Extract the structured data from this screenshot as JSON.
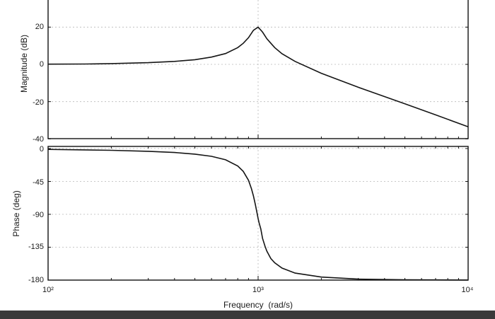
{
  "chart_data": [
    {
      "type": "line",
      "ylabel": "Magnitude (dB)",
      "xlabel": "",
      "xscale": "log",
      "xlim": [
        100,
        10000
      ],
      "ylim": [
        -40,
        30
      ],
      "yticks": [
        20,
        0,
        -20,
        -40
      ],
      "ytick_labels": [
        "20",
        "0",
        "-20",
        "-40"
      ],
      "grid": true,
      "series": [
        {
          "x": [
            100,
            150,
            200,
            300,
            400,
            500,
            600,
            700,
            800,
            850,
            900,
            950,
            1000,
            1050,
            1100,
            1200,
            1300,
            1500,
            2000,
            3000,
            5000,
            7000,
            10000
          ],
          "values": [
            0.1,
            0.2,
            0.4,
            0.9,
            1.6,
            2.5,
            3.9,
            5.8,
            9.0,
            11.3,
            14.3,
            18.3,
            20.0,
            17.3,
            13.8,
            9.0,
            5.7,
            1.6,
            -4.8,
            -12.3,
            -21.2,
            -27.1,
            -33.5
          ]
        }
      ]
    },
    {
      "type": "line",
      "ylabel": "Phase (deg)",
      "xlabel": "Frequency  (rad/s)",
      "xscale": "log",
      "xlim": [
        100,
        10000
      ],
      "ylim": [
        -180,
        0
      ],
      "yticks": [
        0,
        -45,
        -90,
        -135,
        -180
      ],
      "ytick_labels": [
        "0",
        "-45",
        "-90",
        "-135",
        "-180"
      ],
      "xtick_labels": [
        "10²",
        "10³",
        "10⁴"
      ],
      "grid": true,
      "series": [
        {
          "x": [
            100,
            200,
            300,
            400,
            500,
            600,
            700,
            800,
            850,
            900,
            930,
            950,
            970,
            990,
            1000,
            1010,
            1030,
            1050,
            1080,
            1100,
            1150,
            1200,
            1300,
            1500,
            2000,
            3000,
            5000,
            10000
          ],
          "values": [
            -1.2,
            -2.4,
            -3.8,
            -5.4,
            -7.6,
            -10.6,
            -15.4,
            -23.9,
            -31.3,
            -43.5,
            -55.1,
            -64.9,
            -76.6,
            -89.2,
            -95.7,
            -101.3,
            -109.9,
            -123.0,
            -134.0,
            -140.2,
            -150.5,
            -156.3,
            -163.5,
            -170.4,
            -175.8,
            -178.6,
            -179.5,
            -179.9
          ]
        }
      ]
    }
  ]
}
